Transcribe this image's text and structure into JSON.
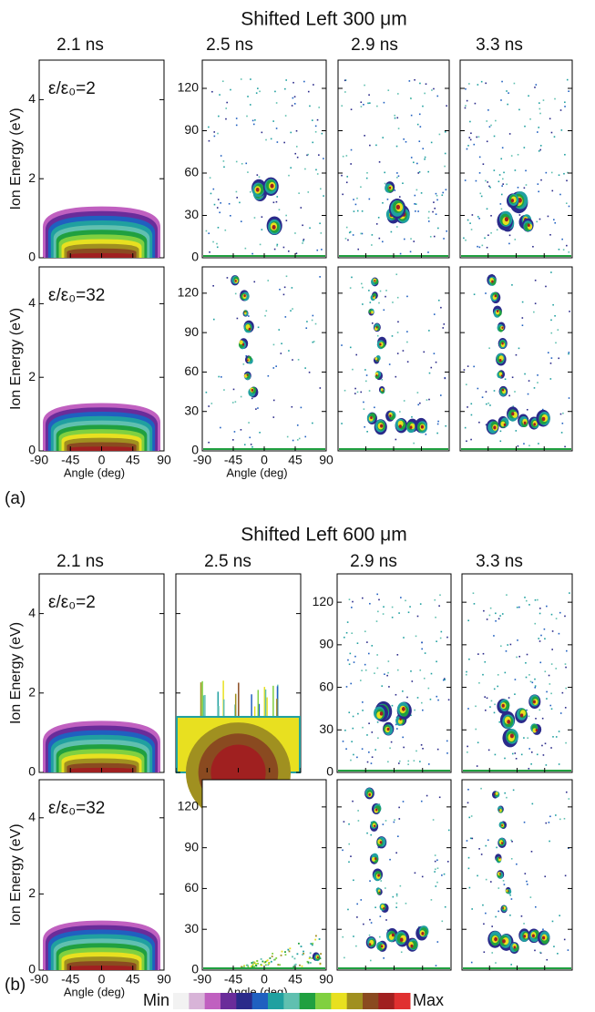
{
  "sections": [
    {
      "title": "Shifted Left 300 μm",
      "tag": "(a)",
      "columns": [
        "2.1 ns",
        "2.5 ns",
        "2.9 ns",
        "3.3 ns"
      ],
      "annotations": [
        "ε/ε₀=2",
        "ε/ε₀=32"
      ]
    },
    {
      "title": "Shifted Left 600 μm",
      "tag": "(b)",
      "columns": [
        "2.1 ns",
        "2.5 ns",
        "2.9 ns",
        "3.3 ns"
      ],
      "annotations": [
        "ε/ε₀=2",
        "ε/ε₀=32"
      ]
    }
  ],
  "y_label": "Ion Energy (eV)",
  "x_label": "Angle (deg)",
  "low_ylim": [
    0,
    5
  ],
  "low_yticks": [
    0,
    2,
    4
  ],
  "high_ylim": [
    0,
    140
  ],
  "high_yticks": [
    0,
    30,
    60,
    90,
    120
  ],
  "xlim": [
    -90,
    90
  ],
  "xticks": [
    -90,
    -45,
    0,
    45,
    90
  ],
  "colorbar": {
    "min_label": "Min",
    "max_label": "Max"
  }
}
